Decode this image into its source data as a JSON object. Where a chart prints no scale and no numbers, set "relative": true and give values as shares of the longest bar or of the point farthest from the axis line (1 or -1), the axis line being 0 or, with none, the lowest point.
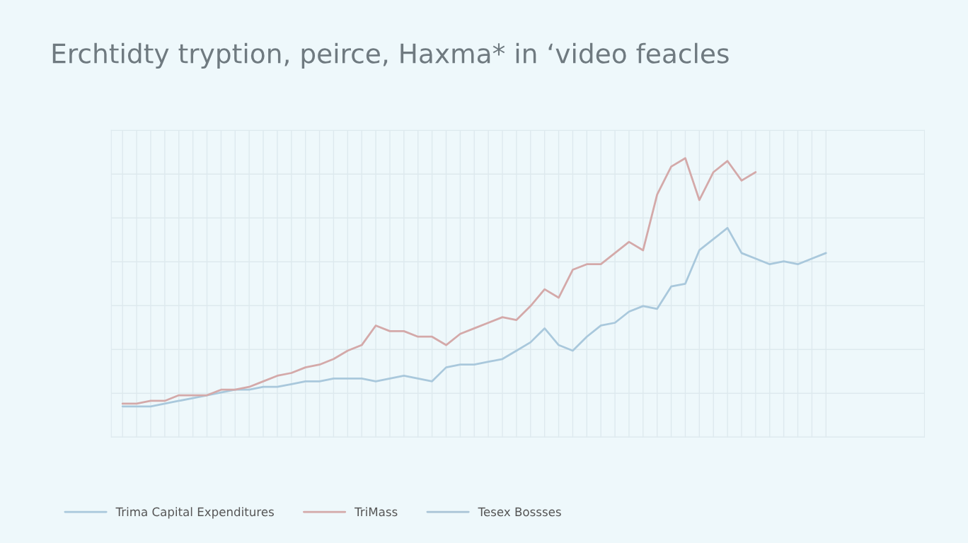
{
  "chart_data": {
    "type": "line",
    "title": "Erchtidty tryption, peirce, Haxma* in ‘video feacles",
    "relative": true,
    "grid": true,
    "legend": "bottom",
    "marker": "none",
    "line_style": "solid",
    "categories": [
      null,
      null,
      null,
      null,
      null,
      null,
      null,
      null,
      null,
      null,
      null,
      null,
      null,
      null,
      null,
      null,
      null,
      null,
      null,
      null,
      null,
      null,
      null,
      null,
      null,
      null,
      null,
      null,
      null,
      null,
      null,
      null,
      null,
      null,
      null,
      null,
      null,
      null,
      null,
      null,
      null,
      null,
      null,
      null,
      null,
      null,
      null,
      null,
      null,
      null,
      null
    ],
    "series": [
      {
        "name": "Trima Capital Expenditures",
        "color": "#a9c8dc",
        "values": [
          0.11,
          0.11,
          0.11,
          0.12,
          0.13,
          0.14,
          0.15,
          0.16,
          0.17,
          0.17,
          0.18,
          0.18,
          0.19,
          0.2,
          0.2,
          0.21,
          0.21,
          0.21,
          0.2,
          0.21,
          0.22,
          0.21,
          0.2,
          0.25,
          0.26,
          0.26,
          0.27,
          0.28,
          0.31,
          0.34,
          0.39,
          0.33,
          0.31,
          0.36,
          0.4,
          0.41,
          0.45,
          0.47,
          0.46,
          0.54,
          0.55,
          0.67,
          0.71,
          0.75,
          0.66,
          0.64,
          0.62,
          0.63,
          0.62,
          0.64,
          0.66
        ]
      },
      {
        "name": "TriMass",
        "color": "#d4a9a9",
        "values": [
          0.12,
          0.12,
          0.13,
          0.13,
          0.15,
          0.15,
          0.15,
          0.17,
          0.17,
          0.18,
          0.2,
          0.22,
          0.23,
          0.25,
          0.26,
          0.28,
          0.31,
          0.33,
          0.4,
          0.38,
          0.38,
          0.36,
          0.36,
          0.33,
          0.37,
          0.39,
          0.41,
          0.43,
          0.42,
          0.47,
          0.53,
          0.5,
          0.6,
          0.62,
          0.62,
          0.66,
          0.7,
          0.67,
          0.87,
          0.97,
          1.0,
          0.85,
          0.95,
          0.99,
          0.92,
          0.95,
          null,
          null,
          null,
          null,
          null
        ]
      },
      {
        "name": "Tesex Bossses",
        "color": "#a9c4d6",
        "values": [
          null,
          null,
          null,
          null,
          null,
          null,
          null,
          null,
          null,
          null,
          null,
          null,
          null,
          null,
          null,
          null,
          null,
          null,
          null,
          null,
          null,
          null,
          null,
          null,
          null,
          null,
          null,
          null,
          null,
          null,
          null,
          null,
          null,
          null,
          null,
          null,
          null,
          null,
          null,
          null,
          null,
          null,
          null,
          null,
          null,
          null,
          null,
          null,
          null,
          null,
          null
        ]
      }
    ]
  }
}
